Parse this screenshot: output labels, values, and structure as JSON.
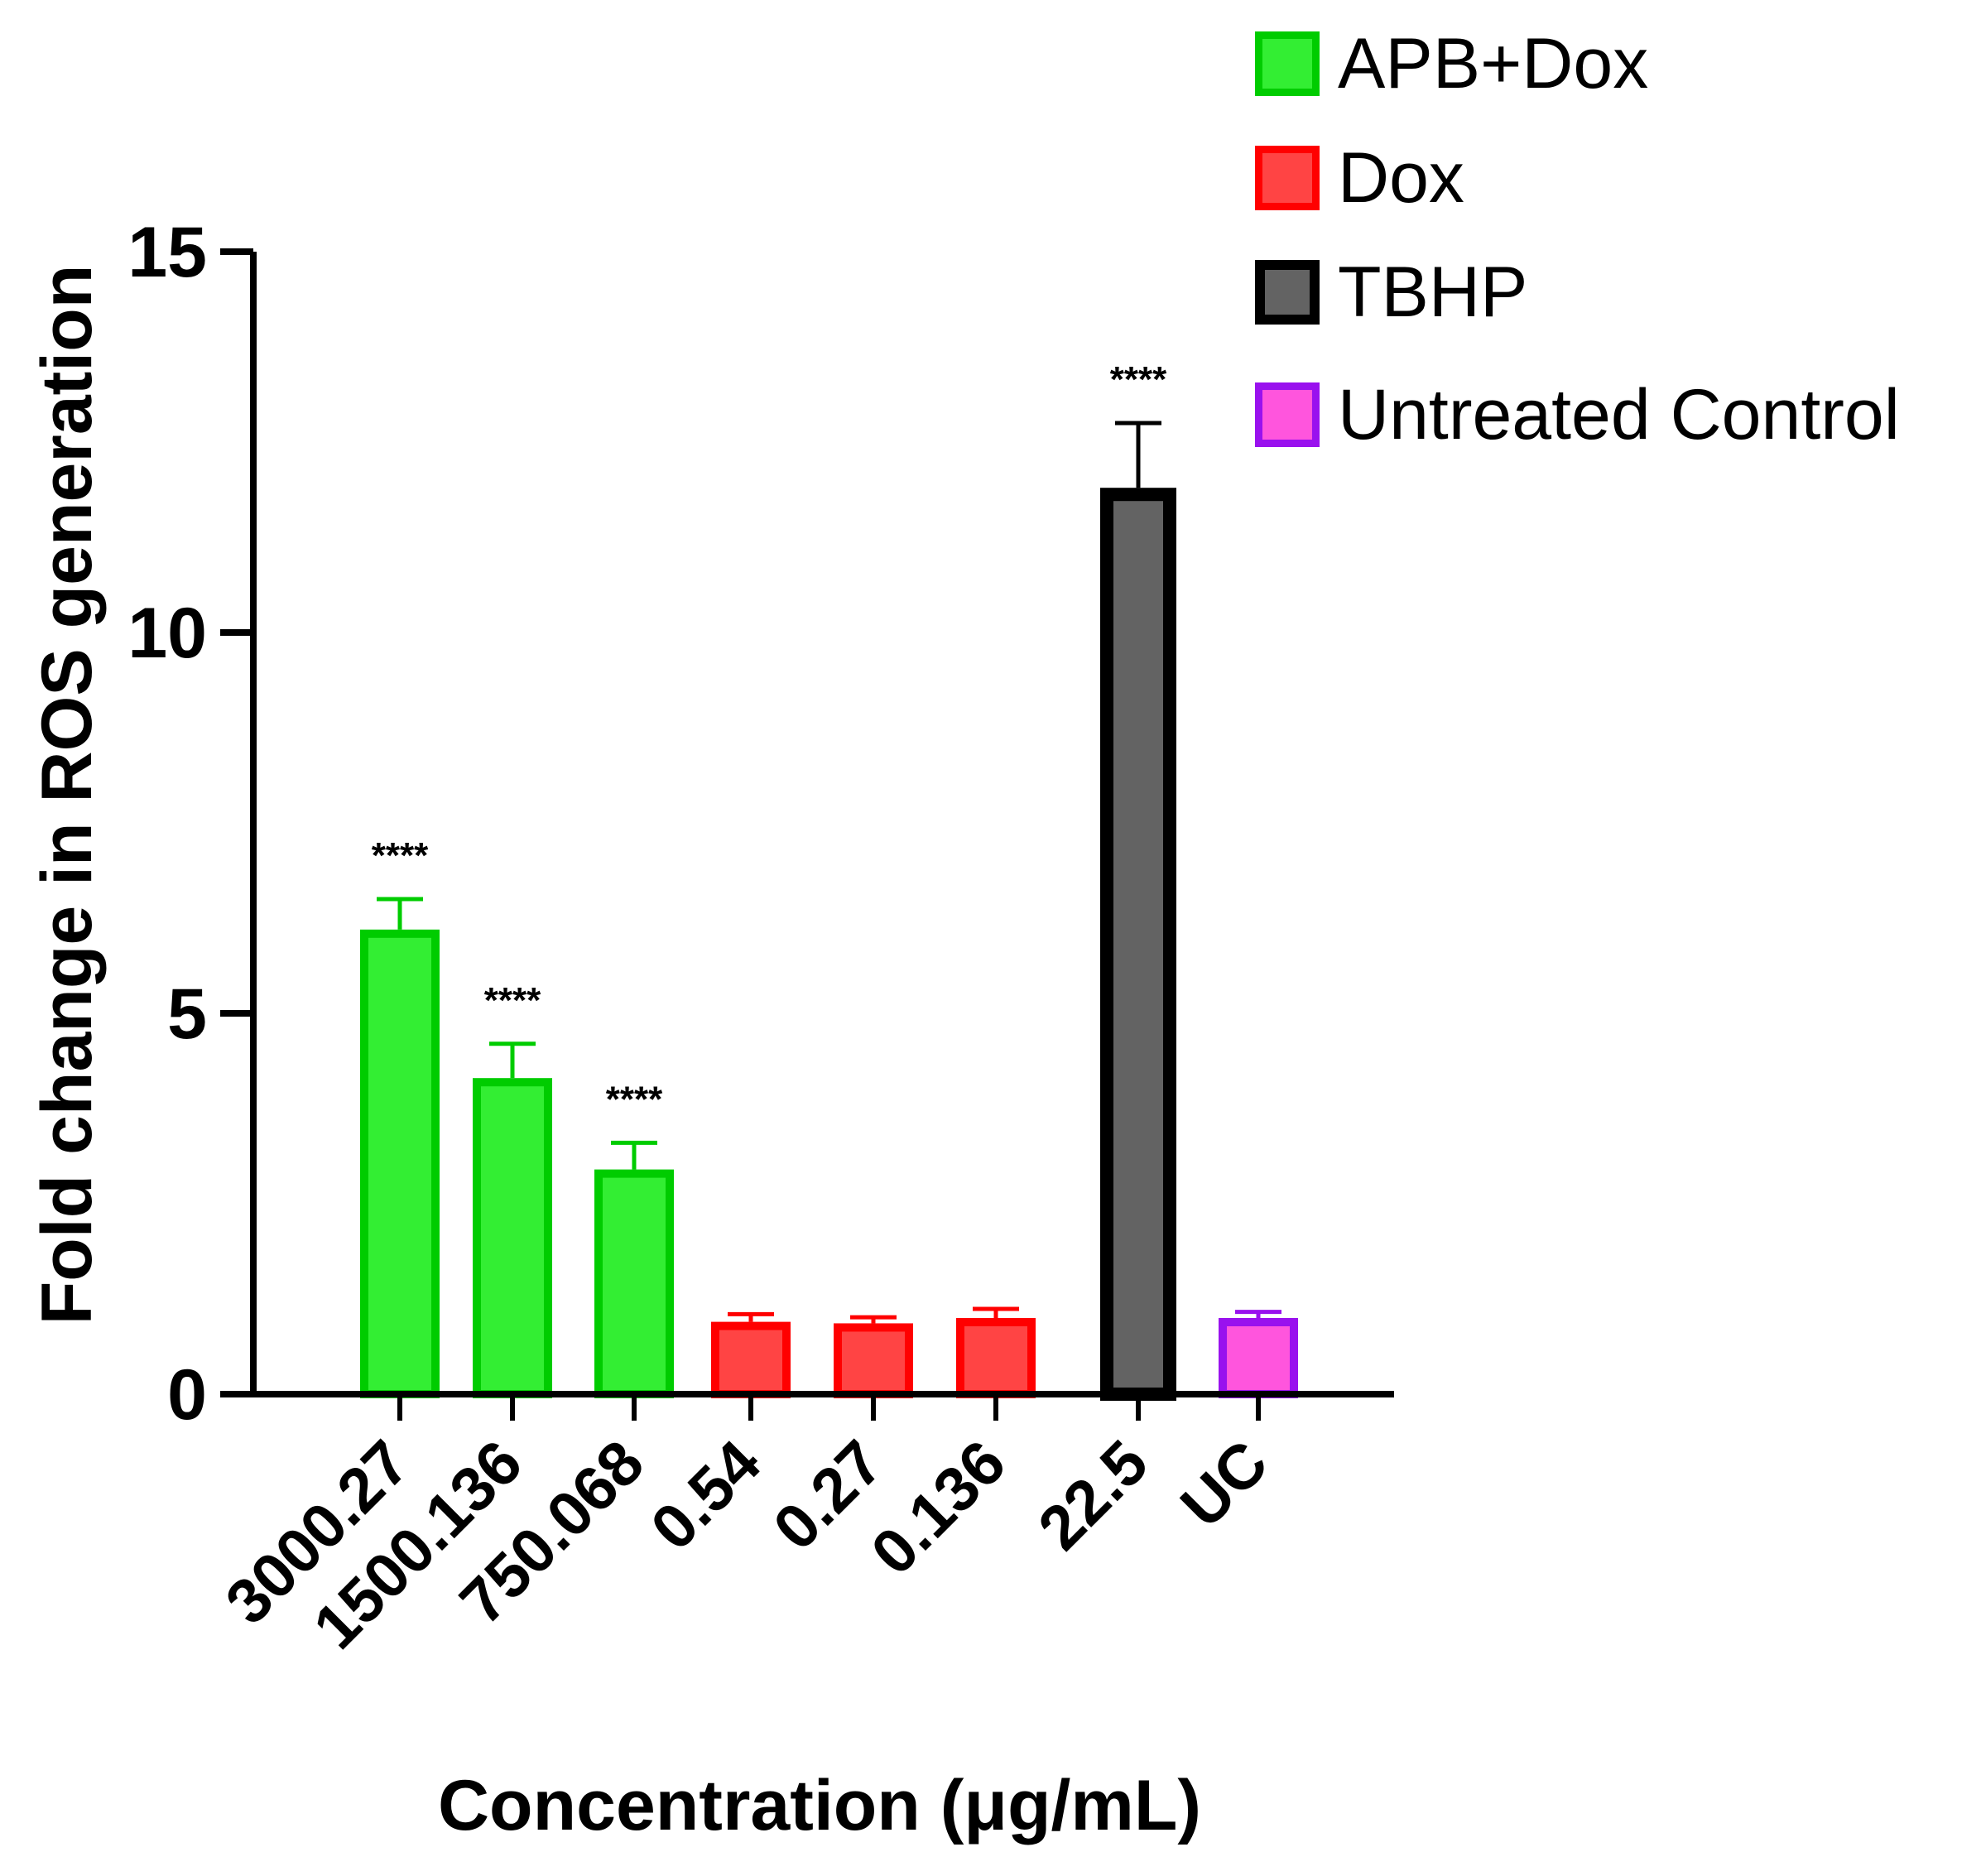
{
  "chart_data": {
    "type": "bar",
    "title": "",
    "ylabel": "Fold change in ROS generation",
    "xlabel": "Concentration (μg/mL)",
    "ylim": [
      0,
      15
    ],
    "yticks": [
      "0",
      "5",
      "10",
      "15"
    ],
    "ytick_values": [
      0,
      5,
      10,
      15
    ],
    "grid": false,
    "legend_position": "top-right",
    "categories": [
      "3000.27",
      "1500.136",
      "750.068",
      "0.54",
      "0.27",
      "0.136",
      "22.5",
      "UC"
    ],
    "bars": [
      {
        "category": "3000.27",
        "group": "APB+Dox",
        "value": 6.1,
        "error": 0.4,
        "sig": "****"
      },
      {
        "category": "1500.136",
        "group": "APB+Dox",
        "value": 4.15,
        "error": 0.45,
        "sig": "****"
      },
      {
        "category": "750.068",
        "group": "APB+Dox",
        "value": 2.95,
        "error": 0.35,
        "sig": "****"
      },
      {
        "category": "0.54",
        "group": "Dox",
        "value": 0.95,
        "error": 0.1,
        "sig": ""
      },
      {
        "category": "0.27",
        "group": "Dox",
        "value": 0.93,
        "error": 0.08,
        "sig": ""
      },
      {
        "category": "0.136",
        "group": "Dox",
        "value": 1.0,
        "error": 0.12,
        "sig": ""
      },
      {
        "category": "22.5",
        "group": "TBHP",
        "value": 11.9,
        "error": 0.85,
        "sig": "****"
      },
      {
        "category": "UC",
        "group": "Untreated Control",
        "value": 1.0,
        "error": 0.08,
        "sig": ""
      }
    ],
    "legend": [
      {
        "name": "APB+Dox",
        "fill": "#33ee33",
        "edge": "#00cc00"
      },
      {
        "name": "Dox",
        "fill": "#ff4444",
        "edge": "#ff0000"
      },
      {
        "name": "TBHP",
        "fill": "#636363",
        "edge": "#000000"
      },
      {
        "name": "Untreated Control",
        "fill": "#ff55dd",
        "edge": "#9911ee"
      }
    ]
  }
}
